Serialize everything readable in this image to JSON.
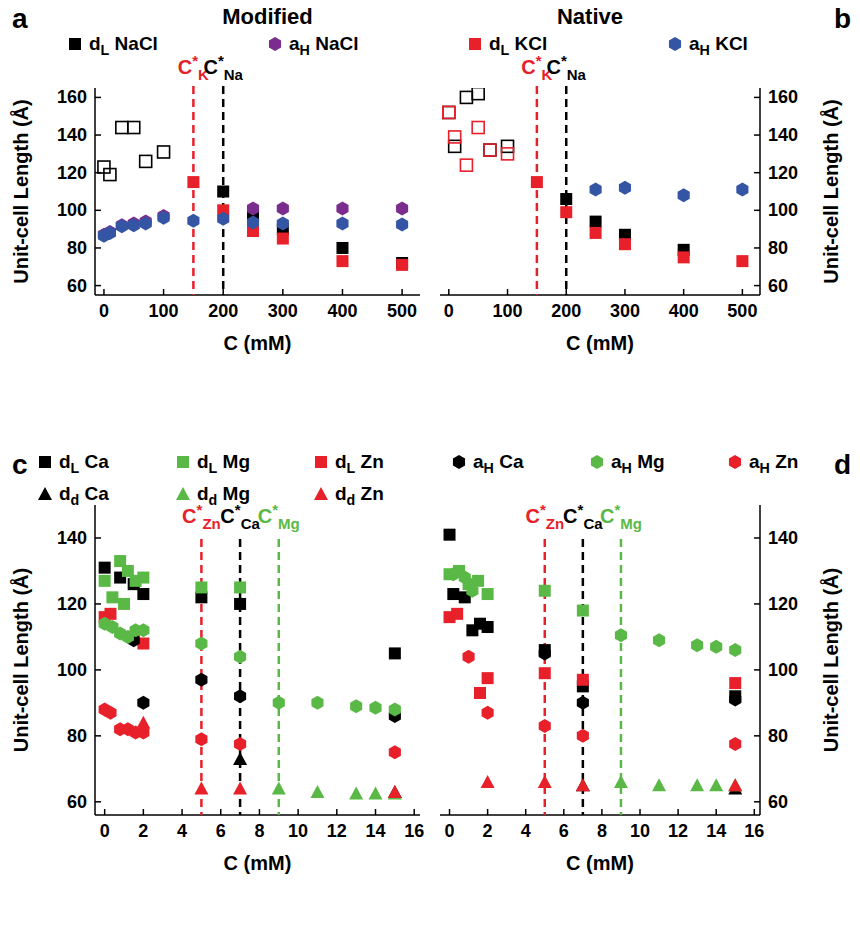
{
  "chart_data": [
    {
      "type": "scatter",
      "panel": "a",
      "title": "Modified",
      "xlabel": "C (mM)",
      "ylabel": "Unit-cell Length (Å)",
      "xlim": [
        -15,
        530
      ],
      "xticks": [
        0,
        100,
        200,
        300,
        400,
        500
      ],
      "ylim": [
        55,
        165
      ],
      "yticks": [
        60,
        80,
        100,
        120,
        140,
        160
      ],
      "legend": "top",
      "annotations": [
        {
          "x": 150,
          "text": "C*K",
          "color": "#e8202a",
          "line_style": "dashed"
        },
        {
          "x": 200,
          "text": "C*Na",
          "color": "#000000",
          "line_style": "dashed"
        }
      ],
      "series": [
        {
          "name": "dL NaCl",
          "color": "#000000",
          "marker": "square",
          "x": [
            200,
            250,
            300,
            400,
            500
          ],
          "values": [
            110,
            97,
            90,
            80,
            72
          ]
        },
        {
          "name": "aH NaCl",
          "color": "#7b2d8e",
          "marker": "hexagon",
          "x": [
            0,
            10,
            30,
            50,
            70,
            100,
            250,
            300,
            400,
            500
          ],
          "values": [
            87,
            88.5,
            92,
            93,
            94,
            97,
            101,
            101,
            101,
            101
          ]
        },
        {
          "name": "dL KCl",
          "color": "#e8202a",
          "marker": "square",
          "x": [
            150,
            200,
            250,
            300,
            400,
            500
          ],
          "values": [
            115,
            100,
            89,
            85,
            73,
            71
          ]
        },
        {
          "name": "aH KCl",
          "color": "#3455a4",
          "marker": "hexagon",
          "x": [
            0,
            10,
            30,
            50,
            70,
            100,
            150,
            200,
            250,
            300,
            400,
            500
          ],
          "values": [
            86.5,
            88,
            91.5,
            92,
            93,
            96,
            94.5,
            95.5,
            93.5,
            93,
            93,
            92.5
          ]
        },
        {
          "color": "#000000",
          "marker": "square-open",
          "x": [
            0,
            10,
            30,
            50,
            70,
            100
          ],
          "values": [
            123,
            119,
            144,
            144,
            126,
            131
          ]
        }
      ]
    },
    {
      "type": "scatter",
      "panel": "b",
      "title": "Native",
      "xlabel": "C (mM)",
      "ylabel": "Unit-cell Length (Å)",
      "xlim": [
        -15,
        530
      ],
      "xticks": [
        0,
        100,
        200,
        300,
        400,
        500
      ],
      "ylim": [
        55,
        165
      ],
      "yticks": [
        60,
        80,
        100,
        120,
        140,
        160
      ],
      "annotations": [
        {
          "x": 150,
          "text": "C*K",
          "color": "#e8202a",
          "line_style": "dashed"
        },
        {
          "x": 200,
          "text": "C*Na",
          "color": "#000000",
          "line_style": "dashed"
        }
      ],
      "series": [
        {
          "color": "#000000",
          "marker": "square-open",
          "x": [
            0,
            10,
            30,
            50,
            70,
            100
          ],
          "values": [
            152,
            134,
            160,
            162,
            132,
            134
          ]
        },
        {
          "color": "#e8202a",
          "marker": "square-open",
          "x": [
            0,
            10,
            30,
            50,
            70,
            100
          ],
          "values": [
            152,
            139,
            124,
            144,
            132,
            130
          ]
        },
        {
          "color": "#000000",
          "marker": "square",
          "x": [
            200,
            250,
            300,
            400
          ],
          "values": [
            106,
            94,
            87,
            79
          ]
        },
        {
          "color": "#e8202a",
          "marker": "square",
          "x": [
            150,
            200,
            250,
            300,
            400,
            500
          ],
          "values": [
            115,
            99,
            88,
            82,
            75,
            73
          ]
        },
        {
          "color": "#3455a4",
          "marker": "hexagon",
          "x": [
            250,
            300,
            400,
            500
          ],
          "values": [
            111,
            112,
            108,
            111
          ]
        }
      ]
    },
    {
      "type": "scatter",
      "panel": "c",
      "xlabel": "C (mM)",
      "ylabel": "Unit-cell Length (Å)",
      "xlim": [
        -0.5,
        16.3
      ],
      "xticks": [
        0,
        2,
        4,
        6,
        8,
        10,
        12,
        14,
        16
      ],
      "ylim": [
        56,
        150
      ],
      "yticks": [
        60,
        80,
        100,
        120,
        140
      ],
      "legend": "top",
      "annotations": [
        {
          "x": 5,
          "text": "C*Zn",
          "color": "#e8202a",
          "line_style": "dashed"
        },
        {
          "x": 7,
          "text": "C*Ca",
          "color": "#000000",
          "line_style": "dashed"
        },
        {
          "x": 9,
          "text": "C*Mg",
          "color": "#5ab946",
          "line_style": "dashed"
        }
      ],
      "series": [
        {
          "name": "dL Ca",
          "color": "#000000",
          "marker": "square",
          "x": [
            0,
            0.8,
            1.5,
            2,
            5,
            7,
            15
          ],
          "values": [
            131,
            128,
            126,
            123,
            122,
            120,
            105
          ]
        },
        {
          "name": "dL Mg",
          "color": "#5ab946",
          "marker": "square",
          "x": [
            0,
            0.4,
            0.8,
            1,
            1.2,
            1.6,
            2,
            5,
            7
          ],
          "values": [
            127,
            122,
            133,
            120,
            130,
            127,
            128,
            125,
            125
          ]
        },
        {
          "name": "dL Zn",
          "color": "#e8202a",
          "marker": "square",
          "x": [
            0,
            0.3,
            1.5,
            2
          ],
          "values": [
            116,
            117,
            110,
            108
          ]
        },
        {
          "name": "aH Ca",
          "color": "#000000",
          "marker": "hexagon",
          "x": [
            1.5,
            2,
            5,
            7,
            15
          ],
          "values": [
            109,
            90,
            97,
            92,
            86
          ]
        },
        {
          "name": "aH Mg",
          "color": "#5ab946",
          "marker": "hexagon",
          "x": [
            0,
            0.4,
            0.8,
            1.2,
            1.6,
            2,
            5,
            7,
            9,
            11,
            13,
            14,
            15
          ],
          "values": [
            114,
            113,
            111,
            110,
            112,
            112,
            108,
            104,
            90,
            90,
            89,
            88.5,
            88
          ]
        },
        {
          "name": "aH Zn",
          "color": "#e8202a",
          "marker": "hexagon",
          "x": [
            0,
            0.3,
            0.8,
            1.2,
            1.6,
            2,
            5,
            7,
            15
          ],
          "values": [
            88,
            87,
            82,
            82,
            81,
            81,
            79,
            77.5,
            75
          ]
        },
        {
          "name": "dd Ca",
          "color": "#000000",
          "marker": "triangle",
          "x": [
            7,
            15
          ],
          "values": [
            73,
            63
          ]
        },
        {
          "name": "dd Mg",
          "color": "#5ab946",
          "marker": "triangle",
          "x": [
            9,
            11,
            13,
            14,
            15
          ],
          "values": [
            64,
            63,
            62.5,
            62.5,
            62.5
          ]
        },
        {
          "name": "dd Zn",
          "color": "#e8202a",
          "marker": "triangle",
          "x": [
            2,
            5,
            7,
            15
          ],
          "values": [
            84,
            64,
            64,
            63
          ]
        }
      ]
    },
    {
      "type": "scatter",
      "panel": "d",
      "xlabel": "C (mM)",
      "ylabel": "Unit-cell Length (Å)",
      "xlim": [
        -0.5,
        16.3
      ],
      "xticks": [
        0,
        2,
        4,
        6,
        8,
        10,
        12,
        14,
        16
      ],
      "ylim": [
        56,
        150
      ],
      "yticks": [
        60,
        80,
        100,
        120,
        140
      ],
      "annotations": [
        {
          "x": 5,
          "text": "C*Zn",
          "color": "#e8202a",
          "line_style": "dashed"
        },
        {
          "x": 7,
          "text": "C*Ca",
          "color": "#000000",
          "line_style": "dashed"
        },
        {
          "x": 9,
          "text": "C*Mg",
          "color": "#5ab946",
          "line_style": "dashed"
        }
      ],
      "series": [
        {
          "color": "#000000",
          "marker": "square",
          "x": [
            0,
            0.2,
            0.8,
            1.2,
            1.6,
            2,
            5,
            7,
            15
          ],
          "values": [
            141,
            123,
            122,
            112,
            114,
            113,
            106,
            95,
            92
          ]
        },
        {
          "color": "#5ab946",
          "marker": "square",
          "x": [
            0,
            0.5,
            1,
            1.5,
            2,
            5,
            7
          ],
          "values": [
            129,
            130,
            126,
            127,
            123,
            124,
            118
          ]
        },
        {
          "color": "#e8202a",
          "marker": "square",
          "x": [
            0,
            0.4,
            1.6,
            2,
            5,
            7,
            15
          ],
          "values": [
            116,
            117,
            93,
            97.5,
            99,
            97,
            96
          ]
        },
        {
          "color": "#000000",
          "marker": "hexagon",
          "x": [
            5,
            7,
            15
          ],
          "values": [
            105,
            90,
            91
          ]
        },
        {
          "color": "#5ab946",
          "marker": "hexagon",
          "x": [
            0.2,
            0.8,
            1.2,
            9,
            11,
            13,
            14,
            15
          ],
          "values": [
            129,
            128,
            124,
            110.5,
            109,
            107.5,
            107,
            106
          ]
        },
        {
          "color": "#e8202a",
          "marker": "hexagon",
          "x": [
            1,
            2,
            5,
            7,
            15
          ],
          "values": [
            104,
            87,
            83,
            80,
            77.5
          ]
        },
        {
          "color": "#000000",
          "marker": "triangle",
          "x": [
            7,
            15
          ],
          "values": [
            65,
            64
          ]
        },
        {
          "color": "#5ab946",
          "marker": "triangle",
          "x": [
            9,
            11,
            13,
            14,
            15
          ],
          "values": [
            66,
            65,
            65,
            65,
            65
          ]
        },
        {
          "color": "#e8202a",
          "marker": "triangle",
          "x": [
            2,
            5,
            7,
            15
          ],
          "values": [
            66,
            66,
            65,
            65
          ]
        }
      ]
    }
  ]
}
